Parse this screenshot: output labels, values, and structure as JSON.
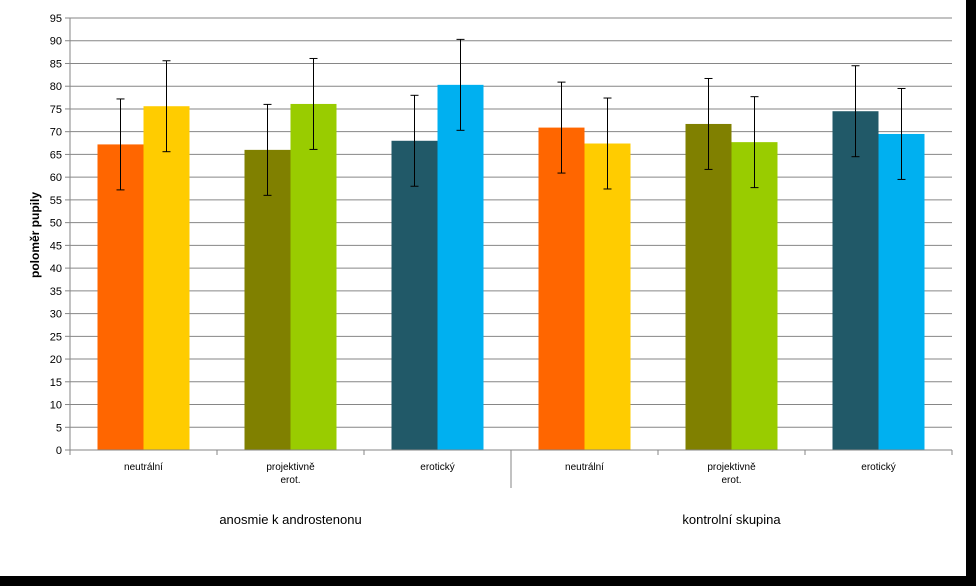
{
  "chart_data": {
    "type": "bar",
    "ylabel": "poloměr pupily",
    "xlabel": "",
    "ylim": [
      0,
      95
    ],
    "yticks": [
      0,
      5,
      10,
      15,
      20,
      25,
      30,
      35,
      40,
      45,
      50,
      55,
      60,
      65,
      70,
      75,
      80,
      85,
      90,
      95
    ],
    "grid": true,
    "legend": "none",
    "groups": [
      {
        "label": "anosmie k androstenonu",
        "categories": [
          {
            "label": [
              "neutrální"
            ],
            "bars": [
              {
                "value": 67.2,
                "error": 10,
                "color": "#ff6600"
              },
              {
                "value": 75.6,
                "error": 10,
                "color": "#ffcc00"
              }
            ]
          },
          {
            "label": [
              "projektivně",
              "erot."
            ],
            "bars": [
              {
                "value": 66.0,
                "error": 10,
                "color": "#808000"
              },
              {
                "value": 76.1,
                "error": 10,
                "color": "#99cc00"
              }
            ]
          },
          {
            "label": [
              "erotický"
            ],
            "bars": [
              {
                "value": 68.0,
                "error": 10,
                "color": "#215968"
              },
              {
                "value": 80.3,
                "error": 10,
                "color": "#00b0f0"
              }
            ]
          }
        ]
      },
      {
        "label": "kontrolní skupina",
        "categories": [
          {
            "label": [
              "neutrální"
            ],
            "bars": [
              {
                "value": 70.9,
                "error": 10,
                "color": "#ff6600"
              },
              {
                "value": 67.4,
                "error": 10,
                "color": "#ffcc00"
              }
            ]
          },
          {
            "label": [
              "projektivně",
              "erot."
            ],
            "bars": [
              {
                "value": 71.7,
                "error": 10,
                "color": "#808000"
              },
              {
                "value": 67.7,
                "error": 10,
                "color": "#99cc00"
              }
            ]
          },
          {
            "label": [
              "erotický"
            ],
            "bars": [
              {
                "value": 74.5,
                "error": 10,
                "color": "#215968"
              },
              {
                "value": 69.5,
                "error": 10,
                "color": "#00b0f0"
              }
            ]
          }
        ]
      }
    ]
  }
}
